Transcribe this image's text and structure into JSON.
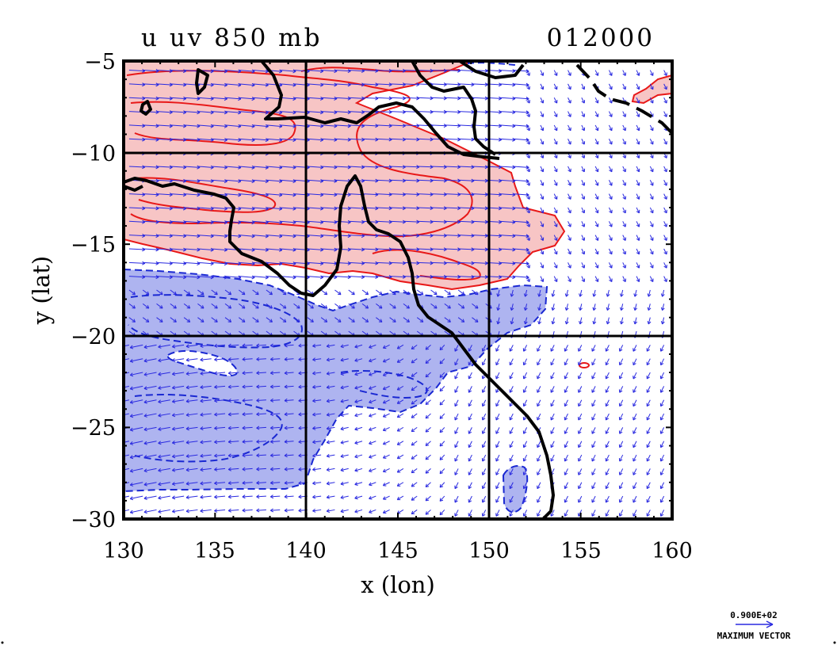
{
  "header": {
    "title_left": "u uv 850 mb",
    "title_right": "012000"
  },
  "chart_data": {
    "type": "map",
    "xlabel": "x (lon)",
    "ylabel": "y (lat)",
    "xlim": [
      130,
      160
    ],
    "ylim": [
      -30,
      -5
    ],
    "x_ticks": [
      "130",
      "135",
      "140",
      "145",
      "150",
      "155",
      "160"
    ],
    "y_ticks": [
      "−5",
      "−10",
      "−15",
      "−20",
      "−25",
      "−30"
    ],
    "grid_lons": [
      140,
      150
    ],
    "grid_lats": [
      -10,
      -20
    ],
    "colors": {
      "positive_fill": "#f7c5c5",
      "positive_line": "#e81818",
      "negative_fill": "#aeb4f0",
      "negative_line": "#1a28d2",
      "vector": "#2a2ae0",
      "coast": "#000000"
    },
    "legend": {
      "value": "0.900E+02",
      "label": "MAXIMUM VECTOR"
    }
  }
}
